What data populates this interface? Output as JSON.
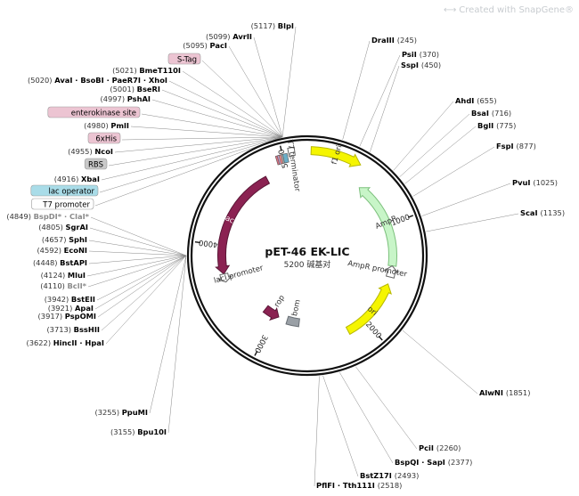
{
  "watermark": "Created with SnapGene®",
  "plasmid": {
    "name": "pET-46 EK-LIC",
    "size_label": "5200 碱基对",
    "length": 5200
  },
  "ticks": [
    {
      "pos": 1000,
      "label": "1000"
    },
    {
      "pos": 2000,
      "label": "2000"
    },
    {
      "pos": 3000,
      "label": "3000"
    },
    {
      "pos": 4000,
      "label": "4000"
    },
    {
      "pos": 5000,
      "label": "5000"
    }
  ],
  "features": [
    {
      "name": "f1 ori",
      "start": 30,
      "end": 440,
      "lane": 0,
      "dir": 1,
      "color": "#f5f500",
      "stroke": "#b8b800",
      "text_color": "#333333"
    },
    {
      "name": "AmpR",
      "start": 540,
      "end": 1400,
      "lane": 1,
      "dir": -1,
      "color": "#c8f5c8",
      "stroke": "#7cc07c",
      "text_color": "#333333"
    },
    {
      "name": "AmpR promoter",
      "start": 1400,
      "end": 1510,
      "lane": 1,
      "dir": -1,
      "color": "#ffffff",
      "stroke": "#666666",
      "text_color": "#333333"
    },
    {
      "name": "ori",
      "start": 1580,
      "end": 2190,
      "lane": 1,
      "dir": -1,
      "color": "#f5f500",
      "stroke": "#b8b800",
      "text_color": "#333333"
    },
    {
      "name": "lacI",
      "start": 3720,
      "end": 4800,
      "lane": 1,
      "dir": -1,
      "color": "#8b2252",
      "stroke": "#5a1636",
      "text_color": "#ffffff"
    },
    {
      "name": "lacI promoter",
      "start": 3640,
      "end": 3720,
      "lane": 1,
      "dir": -1,
      "color": "#ffffff",
      "stroke": "#666666",
      "text_color": "#333333"
    },
    {
      "name": "rop",
      "start": 2960,
      "end": 3150,
      "lane": 2,
      "dir": -1,
      "color": "#8b2252",
      "stroke": "#5a1636",
      "text_color": "#333333"
    },
    {
      "name": "bom",
      "start": 2700,
      "end": 2850,
      "lane": 2,
      "dir": 0,
      "color": "#9aa0a6",
      "stroke": "#6a7076",
      "text_color": "#333333"
    },
    {
      "name": "T7 terminator",
      "start": 5050,
      "end": 5100,
      "lane": 0,
      "dir": 0,
      "color": "#ffffff",
      "stroke": "#666666",
      "text_color": "#333333"
    }
  ],
  "small_features": [
    {
      "pos": 4960,
      "color": "#e07080"
    },
    {
      "pos": 4975,
      "color": "#c0a0c8"
    },
    {
      "pos": 4990,
      "color": "#ff8c8c"
    },
    {
      "pos": 5005,
      "color": "#a8a8a8"
    },
    {
      "pos": 5020,
      "color": "#6aaec8"
    }
  ],
  "site_labels": [
    {
      "name": "BlpI",
      "pos": "(5117)",
      "color": "#000000"
    },
    {
      "name": "AvrII",
      "pos": "(5099)",
      "color": "#000000"
    },
    {
      "name": "PacI",
      "pos": "(5095)",
      "color": "#000000"
    },
    {
      "name": "S-Tag",
      "pos": "",
      "color": "#000000",
      "box": "#ecc4d2"
    },
    {
      "name": "BmeT110I",
      "pos": "(5021)",
      "color": "#000000"
    },
    {
      "name": "AvaI · BsoBI · PaeR7I · XhoI",
      "pos": "(5020)",
      "color": "#000000"
    },
    {
      "name": "BseRI",
      "pos": "(5001)",
      "color": "#000000"
    },
    {
      "name": "PshAI",
      "pos": "(4997)",
      "color": "#000000"
    },
    {
      "name": "enterokinase site",
      "pos": "",
      "color": "#000000",
      "box": "#ecc4d2"
    },
    {
      "name": "PmlI",
      "pos": "(4980)",
      "color": "#000000"
    },
    {
      "name": "6xHis",
      "pos": "",
      "color": "#000000",
      "box": "#ecc4d2"
    },
    {
      "name": "NcoI",
      "pos": "(4955)",
      "color": "#000000"
    },
    {
      "name": "RBS",
      "pos": "",
      "color": "#000000",
      "box": "#c9c9c9"
    },
    {
      "name": "XbaI",
      "pos": "(4916)",
      "color": "#000000"
    },
    {
      "name": "lac operator",
      "pos": "",
      "color": "#000000",
      "box": "#a9dce8"
    },
    {
      "name": "T7 promoter",
      "pos": "",
      "color": "#000000",
      "box": "#ffffff"
    },
    {
      "name": "BspDI* · ClaI*",
      "pos": "(4849)",
      "color": "#8a8a8a"
    },
    {
      "name": "SgrAI",
      "pos": "(4805)",
      "color": "#000000"
    },
    {
      "name": "SphI",
      "pos": "(4657)",
      "color": "#000000"
    },
    {
      "name": "EcoNI",
      "pos": "(4592)",
      "color": "#000000"
    },
    {
      "name": "BstAPI",
      "pos": "(4448)",
      "color": "#000000"
    },
    {
      "name": "MluI",
      "pos": "(4124)",
      "color": "#000000"
    },
    {
      "name": "BclI*",
      "pos": "(4110)",
      "color": "#8a8a8a"
    },
    {
      "name": "BstEII",
      "pos": "(3942)",
      "color": "#000000"
    },
    {
      "name": "ApaI",
      "pos": "(3921)",
      "color": "#000000"
    },
    {
      "name": "PspOMI",
      "pos": "(3917)",
      "color": "#000000"
    },
    {
      "name": "BssHII",
      "pos": "(3713)",
      "color": "#000000"
    },
    {
      "name": "HincII · HpaI",
      "pos": "(3622)",
      "color": "#000000"
    },
    {
      "name": "PpuMI",
      "pos": "(3255)",
      "color": "#000000"
    },
    {
      "name": "Bpu10I",
      "pos": "(3155)",
      "color": "#000000"
    },
    {
      "name": "DraIII",
      "pos": "(245)",
      "color": "#000000"
    },
    {
      "name": "PsiI",
      "pos": "(370)",
      "color": "#000000"
    },
    {
      "name": "SspI",
      "pos": "(450)",
      "color": "#000000"
    },
    {
      "name": "AhdI",
      "pos": "(655)",
      "color": "#000000"
    },
    {
      "name": "BsaI",
      "pos": "(716)",
      "color": "#000000"
    },
    {
      "name": "BglI",
      "pos": "(775)",
      "color": "#000000"
    },
    {
      "name": "FspI",
      "pos": "(877)",
      "color": "#000000"
    },
    {
      "name": "PvuI",
      "pos": "(1025)",
      "color": "#000000"
    },
    {
      "name": "ScaI",
      "pos": "(1135)",
      "color": "#000000"
    },
    {
      "name": "AlwNI",
      "pos": "(1851)",
      "color": "#000000"
    },
    {
      "name": "PciI",
      "pos": "(2260)",
      "color": "#000000"
    },
    {
      "name": "BspQI · SapI",
      "pos": "(2377)",
      "color": "#000000"
    },
    {
      "name": "BstZ17I",
      "pos": "(2493)",
      "color": "#000000"
    },
    {
      "name": "PflFI · Tth111I",
      "pos": "(2518)",
      "color": "#000000"
    }
  ]
}
